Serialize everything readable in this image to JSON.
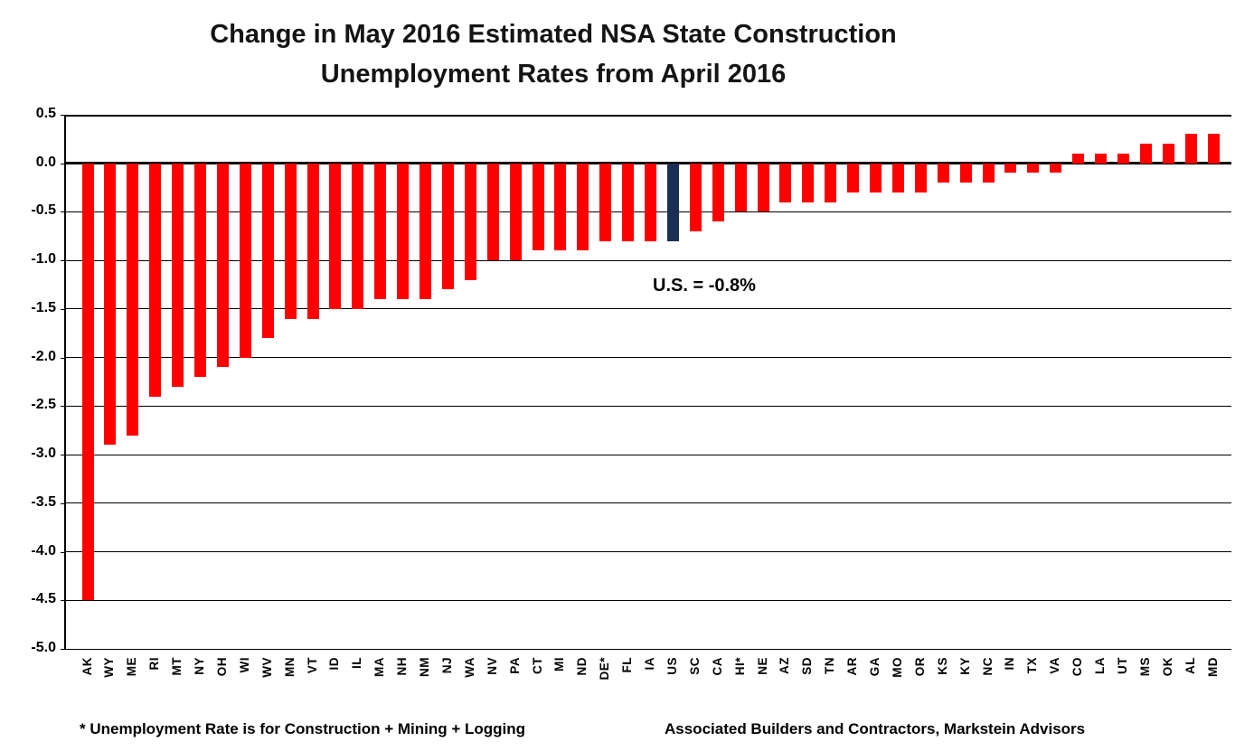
{
  "title": {
    "line1": "Change in May 2016 Estimated NSA State Construction",
    "line2": "Unemployment Rates from April 2016"
  },
  "annotation": "U.S. = -0.8%",
  "footnotes": {
    "left": "* Unemployment Rate is for Construction + Mining + Logging",
    "right": "Associated Builders and Contractors, Markstein Advisors"
  },
  "chart_data": {
    "type": "bar",
    "title": "Change in May 2016 Estimated NSA State Construction Unemployment Rates from April 2016",
    "xlabel": "",
    "ylabel": "",
    "categories": [
      "AK",
      "WY",
      "ME",
      "RI",
      "MT",
      "NY",
      "OH",
      "WI",
      "WV",
      "MN",
      "VT",
      "ID",
      "IL",
      "MA",
      "NH",
      "NM",
      "NJ",
      "WA",
      "NV",
      "PA",
      "CT",
      "MI",
      "ND",
      "DE*",
      "FL",
      "IA",
      "US",
      "SC",
      "CA",
      "HI*",
      "NE",
      "AZ",
      "SD",
      "TN",
      "AR",
      "GA",
      "MO",
      "OR",
      "KS",
      "KY",
      "NC",
      "IN",
      "TX",
      "VA",
      "CO",
      "LA",
      "UT",
      "MS",
      "OK",
      "AL",
      "MD"
    ],
    "values": [
      -4.5,
      -2.9,
      -2.8,
      -2.4,
      -2.3,
      -2.2,
      -2.1,
      -2.0,
      -1.8,
      -1.6,
      -1.6,
      -1.5,
      -1.5,
      -1.4,
      -1.4,
      -1.4,
      -1.3,
      -1.2,
      -1.0,
      -1.0,
      -0.9,
      -0.9,
      -0.9,
      -0.8,
      -0.8,
      -0.8,
      -0.8,
      -0.7,
      -0.6,
      -0.5,
      -0.5,
      -0.4,
      -0.4,
      -0.4,
      -0.3,
      -0.3,
      -0.3,
      -0.3,
      -0.2,
      -0.2,
      -0.2,
      -0.1,
      -0.1,
      -0.1,
      0.1,
      0.1,
      0.1,
      0.2,
      0.2,
      0.3,
      0.3
    ],
    "highlight_category": "US",
    "highlight_value_note": "U.S. = -0.8%",
    "y_ticks": [
      0.5,
      0.0,
      -0.5,
      -1.0,
      -1.5,
      -2.0,
      -2.5,
      -3.0,
      -3.5,
      -4.0,
      -4.5,
      -5.0
    ],
    "ylim": [
      -5.0,
      0.5
    ],
    "grid": "horizontal",
    "legend": "none",
    "colors": {
      "bar": "#FF0000",
      "highlight": "#1B2F54",
      "axis": "#000000",
      "gridline": "#000000",
      "text": "#000000"
    }
  }
}
